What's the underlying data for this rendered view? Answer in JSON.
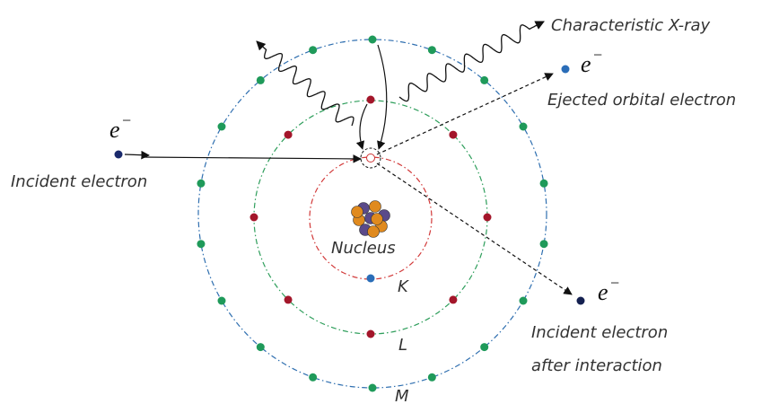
{
  "labels": {
    "xray": "Characteristic X-ray",
    "ejected": "Ejected orbital electron",
    "incident": "Incident electron",
    "after": [
      "Incident electron",
      "after interaction"
    ],
    "nucleus": "Nucleus",
    "shells": [
      "K",
      "L",
      "M"
    ],
    "electron_symbols": [
      {
        "symbol": "e",
        "charge": "−"
      },
      {
        "symbol": "e",
        "charge": "−"
      },
      {
        "symbol": "e",
        "charge": "−"
      }
    ]
  }
}
